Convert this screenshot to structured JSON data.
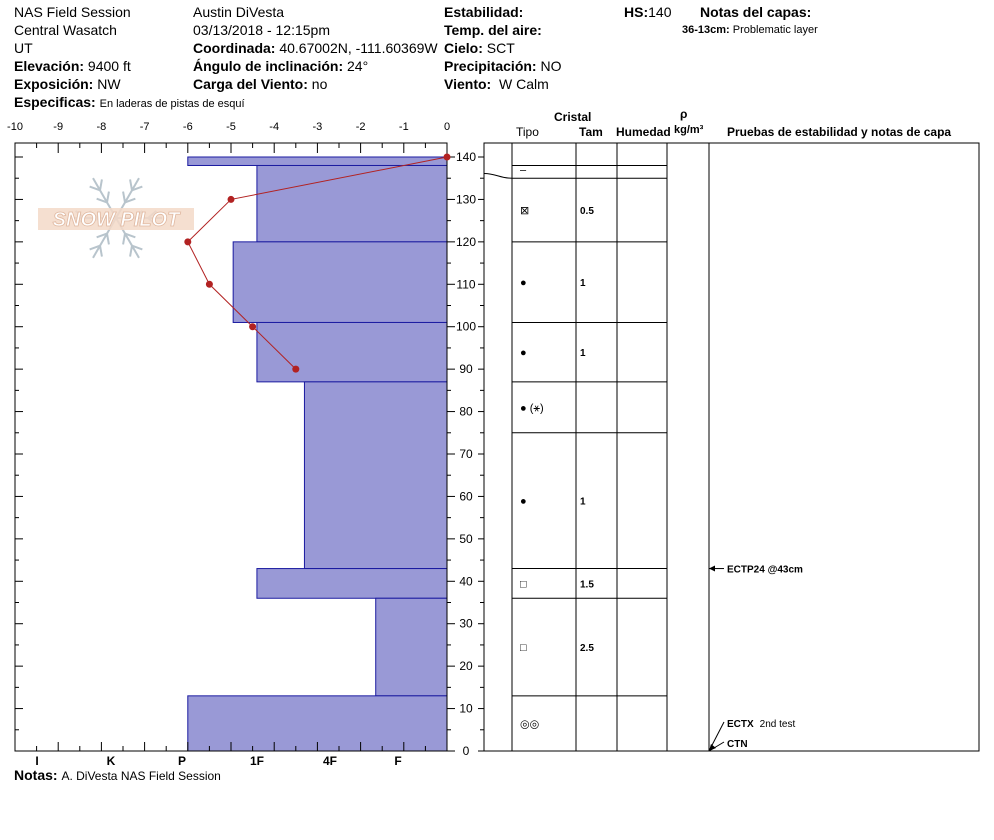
{
  "header": {
    "col1": [
      "NAS Field Session",
      "Central Wasatch",
      "UT"
    ],
    "elevation_label": "Elevación:",
    "elevation": "9400 ft",
    "aspect_label": "Exposición:",
    "aspect": "NW",
    "specifics_label": "Especificas:",
    "specifics": "En laderas de pistas de esquí",
    "observer": "Austin DiVesta",
    "datetime": "03/13/2018 - 12:15pm",
    "coord_label": "Coordinada:",
    "coord": "40.67002N, -111.60369W",
    "slope_label": "Ángulo de inclinación:",
    "slope": "24°",
    "wind_load_label": "Carga del Viento:",
    "wind_load": "no",
    "stability_label": "Estabilidad:",
    "stability": "",
    "air_temp_label": "Temp. del aire:",
    "air_temp": "",
    "sky_label": "Cielo:",
    "sky": "SCT",
    "precip_label": "Precipitación:",
    "precip": "NO",
    "wind_label": "Viento:",
    "wind": "W Calm",
    "hs_label": "HS:",
    "hs": "140",
    "layer_notes_label": "Notas del capas:",
    "layer_note_depth": "36-13cm:",
    "layer_note_text": "Problematic layer"
  },
  "columns": {
    "cristal": "Cristal",
    "tipo": "Tipo",
    "tam": "Tam",
    "humedad": "Humedad",
    "rho": "ρ",
    "density_unit": "kg/m³",
    "tests_header": "Pruebas de estabilidad y notas de capa"
  },
  "watermark": "SNOW PILOT",
  "footer": {
    "label": "Notas:",
    "text": "A. DiVesta NAS Field Session"
  },
  "chart_data": {
    "type": "snow-profile",
    "temperature_axis": {
      "ticks": [
        "-10",
        "-9",
        "-8",
        "-7",
        "-6",
        "-5",
        "-4",
        "-3",
        "-2",
        "-1",
        "0"
      ],
      "range": [
        -10,
        0
      ]
    },
    "height_axis": {
      "ticks": [
        "0",
        "10",
        "20",
        "30",
        "40",
        "50",
        "60",
        "70",
        "80",
        "90",
        "100",
        "110",
        "120",
        "130",
        "140"
      ],
      "range": [
        0,
        140
      ]
    },
    "hardness_axis": {
      "ticks": [
        "I",
        "K",
        "P",
        "1F",
        "4F",
        "F"
      ]
    },
    "hardness_layers": [
      {
        "top": 140,
        "bottom": 138,
        "temp_extent": -6.0
      },
      {
        "top": 138,
        "bottom": 120,
        "temp_extent": -4.4
      },
      {
        "top": 120,
        "bottom": 101,
        "temp_extent": -4.95
      },
      {
        "top": 101,
        "bottom": 87,
        "temp_extent": -4.4
      },
      {
        "top": 87,
        "bottom": 43,
        "temp_extent": -3.3
      },
      {
        "top": 43,
        "bottom": 36,
        "temp_extent": -4.4
      },
      {
        "top": 36,
        "bottom": 13,
        "temp_extent": -1.65
      },
      {
        "top": 13,
        "bottom": 0,
        "temp_extent": -6.0
      }
    ],
    "temperature_profile": [
      {
        "h": 140,
        "t": 0
      },
      {
        "h": 130,
        "t": -5
      },
      {
        "h": 120,
        "t": -6
      },
      {
        "h": 110,
        "t": -5.5
      },
      {
        "h": 100,
        "t": -4.5
      },
      {
        "h": 90,
        "t": -3.5
      }
    ],
    "layer_boundaries": [
      140,
      138,
      135,
      120,
      101,
      87,
      75,
      43,
      36,
      13,
      0
    ],
    "crystal_rows": [
      {
        "h": 137,
        "tipo": "–",
        "tam": ""
      },
      {
        "h": 127.5,
        "tipo": "⊠",
        "tam": "0.5"
      },
      {
        "h": 110.5,
        "tipo": "●",
        "tam": "1"
      },
      {
        "h": 94,
        "tipo": "●",
        "tam": "1"
      },
      {
        "h": 81,
        "tipo": "● (⚹)",
        "tam": ""
      },
      {
        "h": 59,
        "tipo": "●",
        "tam": "1"
      },
      {
        "h": 39.5,
        "tipo": "□",
        "tam": "1.5"
      },
      {
        "h": 24.5,
        "tipo": "□",
        "tam": "2.5"
      },
      {
        "h": 6.5,
        "tipo": "◎◎",
        "tam": ""
      }
    ],
    "stability_tests": [
      {
        "h": 43,
        "label": "ECTP24 @43cm"
      },
      {
        "h": 0,
        "label": "ECTX",
        "note": "2nd test"
      },
      {
        "h": 0,
        "label": "CTN"
      }
    ]
  }
}
